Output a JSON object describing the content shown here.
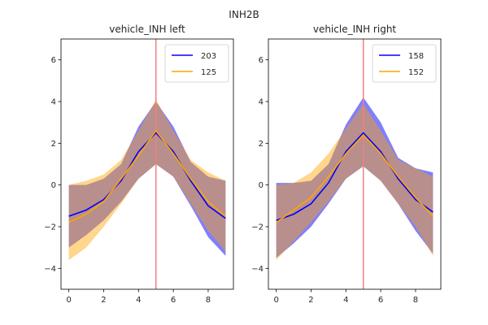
{
  "suptitle": "INH2B",
  "chart_data": [
    {
      "type": "line",
      "title": "vehicle_INH left",
      "xlabel": "",
      "ylabel": "",
      "xlim": [
        -0.45,
        9.45
      ],
      "ylim": [
        -5,
        7
      ],
      "xticks": [
        0,
        2,
        4,
        6,
        8
      ],
      "yticks": [
        -4,
        -2,
        0,
        2,
        4,
        6
      ],
      "vline": 5,
      "legend_position": "upper-right",
      "x": [
        0,
        1,
        2,
        3,
        4,
        5,
        6,
        7,
        8,
        9
      ],
      "series": [
        {
          "name": "203",
          "color": "#0000ff",
          "values": [
            -1.5,
            -1.2,
            -0.7,
            0.2,
            1.6,
            2.5,
            1.6,
            0.2,
            -1.0,
            -1.6
          ],
          "lower": [
            -3.0,
            -2.4,
            -1.7,
            -0.8,
            0.3,
            1.0,
            0.4,
            -1.0,
            -2.5,
            -3.4
          ],
          "upper": [
            0.0,
            0.0,
            0.3,
            1.0,
            2.8,
            4.0,
            2.8,
            1.1,
            0.4,
            0.2
          ]
        },
        {
          "name": "125",
          "color": "#ffa500",
          "values": [
            -1.8,
            -1.4,
            -0.8,
            0.3,
            1.4,
            2.6,
            1.5,
            0.3,
            -0.8,
            -1.5
          ],
          "lower": [
            -3.6,
            -3.0,
            -2.0,
            -0.9,
            0.3,
            1.0,
            0.4,
            -0.9,
            -2.2,
            -3.2
          ],
          "upper": [
            0.0,
            0.2,
            0.5,
            1.2,
            2.6,
            4.1,
            2.6,
            1.2,
            0.6,
            0.2
          ]
        }
      ]
    },
    {
      "type": "line",
      "title": "vehicle_INH right",
      "xlabel": "",
      "ylabel": "",
      "xlim": [
        -0.45,
        9.45
      ],
      "ylim": [
        -5,
        7
      ],
      "xticks": [
        0,
        2,
        4,
        6,
        8
      ],
      "yticks": [
        -4,
        -2,
        0,
        2,
        4,
        6
      ],
      "vline": 5,
      "legend_position": "upper-right",
      "x": [
        0,
        1,
        2,
        3,
        4,
        5,
        6,
        7,
        8,
        9
      ],
      "series": [
        {
          "name": "158",
          "color": "#0000ff",
          "values": [
            -1.7,
            -1.4,
            -0.9,
            0.1,
            1.6,
            2.5,
            1.6,
            0.3,
            -0.7,
            -1.3
          ],
          "lower": [
            -3.5,
            -2.8,
            -2.0,
            -0.9,
            0.3,
            0.9,
            0.2,
            -0.9,
            -2.2,
            -3.3
          ],
          "upper": [
            0.1,
            0.1,
            0.2,
            1.0,
            2.9,
            4.2,
            3.0,
            1.3,
            0.8,
            0.6
          ]
        },
        {
          "name": "152",
          "color": "#ffa500",
          "values": [
            -1.8,
            -1.2,
            -0.6,
            0.4,
            1.5,
            2.4,
            1.5,
            0.4,
            -0.6,
            -1.5
          ],
          "lower": [
            -3.6,
            -2.7,
            -1.8,
            -0.8,
            0.3,
            0.9,
            0.2,
            -0.9,
            -2.0,
            -3.4
          ],
          "upper": [
            0.0,
            0.1,
            0.6,
            1.5,
            2.7,
            3.9,
            2.6,
            1.2,
            0.8,
            0.4
          ]
        }
      ]
    }
  ]
}
